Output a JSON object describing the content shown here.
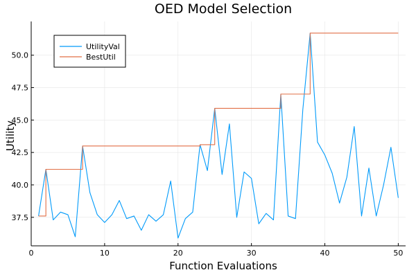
{
  "chart_data": {
    "type": "line",
    "title": "OED Model Selection",
    "xlabel": "Function Evaluations",
    "ylabel": "Utility",
    "xlim": [
      0,
      51
    ],
    "ylim": [
      35.3,
      52.6
    ],
    "xticks": [
      0,
      10,
      20,
      30,
      40,
      50
    ],
    "xtick_labels": [
      "0",
      "10",
      "20",
      "30",
      "40",
      "50"
    ],
    "yticks": [
      37.5,
      40.0,
      42.5,
      45.0,
      47.5,
      50.0
    ],
    "ytick_labels": [
      "37.5",
      "40.0",
      "42.5",
      "45.0",
      "47.5",
      "50.0"
    ],
    "grid": true,
    "legend_position": "top-left",
    "x": [
      1,
      2,
      3,
      4,
      5,
      6,
      7,
      8,
      9,
      10,
      11,
      12,
      13,
      14,
      15,
      16,
      17,
      18,
      19,
      20,
      21,
      22,
      23,
      24,
      25,
      26,
      27,
      28,
      29,
      30,
      31,
      32,
      33,
      34,
      35,
      36,
      37,
      38,
      39,
      40,
      41,
      42,
      43,
      44,
      45,
      46,
      47,
      48,
      49,
      50
    ],
    "series": [
      {
        "name": "UtilityVal",
        "color": "#009AFA",
        "step": false,
        "values": [
          37.6,
          41.2,
          37.3,
          37.9,
          37.7,
          36.0,
          43.0,
          39.4,
          37.7,
          37.1,
          37.7,
          38.8,
          37.4,
          37.6,
          36.5,
          37.7,
          37.2,
          37.7,
          40.3,
          35.9,
          37.4,
          37.9,
          43.1,
          41.1,
          45.9,
          40.8,
          44.7,
          37.5,
          41.0,
          40.5,
          37.0,
          37.8,
          37.3,
          47.0,
          37.6,
          37.4,
          45.8,
          51.7,
          43.3,
          42.3,
          40.9,
          38.6,
          40.6,
          44.5,
          37.6,
          41.3,
          37.6,
          40.0,
          42.9,
          39.0
        ]
      },
      {
        "name": "BestUtil",
        "color": "#E26F46",
        "step": true,
        "values": [
          37.6,
          41.2,
          41.2,
          41.2,
          41.2,
          41.2,
          43.0,
          43.0,
          43.0,
          43.0,
          43.0,
          43.0,
          43.0,
          43.0,
          43.0,
          43.0,
          43.0,
          43.0,
          43.0,
          43.0,
          43.0,
          43.0,
          43.1,
          43.1,
          45.9,
          45.9,
          45.9,
          45.9,
          45.9,
          45.9,
          45.9,
          45.9,
          45.9,
          47.0,
          47.0,
          47.0,
          47.0,
          51.7,
          51.7,
          51.7,
          51.7,
          51.7,
          51.7,
          51.7,
          51.7,
          51.7,
          51.7,
          51.7,
          51.7,
          51.7
        ]
      }
    ]
  }
}
